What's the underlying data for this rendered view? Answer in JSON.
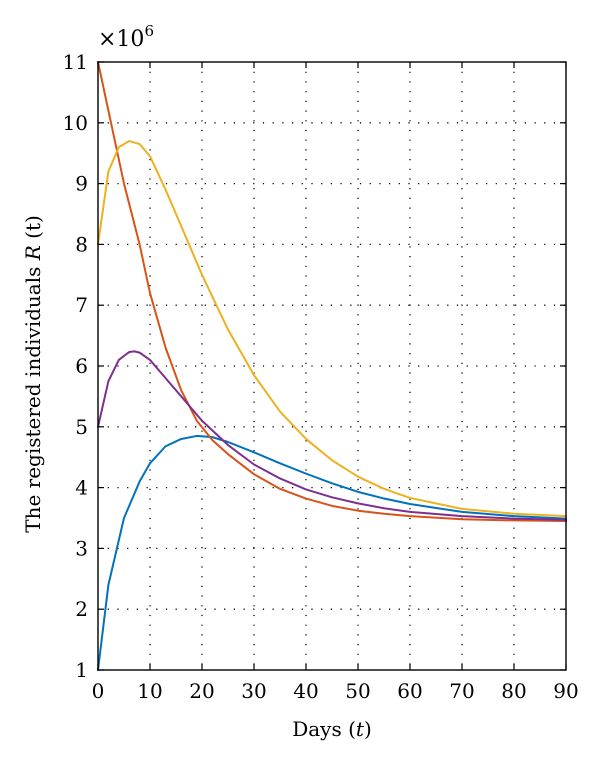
{
  "chart_data": {
    "type": "line",
    "xlabel": "Days (t)",
    "ylabel": "The registered individuals R (t)",
    "xlabel_parts": {
      "pre": "Days (",
      "var": "t",
      "post": ")"
    },
    "ylabel_parts": {
      "pre": "The registered individuals ",
      "var": "R",
      "post": " (t)"
    },
    "y_multiplier": {
      "base": "×10",
      "exponent": "6"
    },
    "xlim": [
      0,
      90
    ],
    "ylim": [
      1,
      11
    ],
    "xticks": [
      0,
      10,
      20,
      30,
      40,
      50,
      60,
      70,
      80,
      90
    ],
    "yticks": [
      1,
      2,
      3,
      4,
      5,
      6,
      7,
      8,
      9,
      10,
      11
    ],
    "grid": true,
    "series": [
      {
        "color": "#0072BD",
        "x": [
          0,
          2,
          5,
          8,
          10,
          13,
          16,
          19,
          22,
          25,
          30,
          35,
          40,
          45,
          50,
          55,
          60,
          70,
          80,
          90
        ],
        "y": [
          1.0,
          2.4,
          3.5,
          4.1,
          4.4,
          4.68,
          4.8,
          4.85,
          4.83,
          4.75,
          4.58,
          4.4,
          4.23,
          4.07,
          3.93,
          3.82,
          3.73,
          3.6,
          3.53,
          3.49
        ]
      },
      {
        "color": "#D95319",
        "x": [
          0,
          2,
          5,
          8,
          10,
          13,
          16,
          19,
          22,
          25,
          30,
          35,
          40,
          45,
          50,
          55,
          60,
          70,
          80,
          90
        ],
        "y": [
          11.0,
          10.2,
          9.0,
          8.0,
          7.2,
          6.3,
          5.6,
          5.1,
          4.78,
          4.55,
          4.22,
          3.98,
          3.82,
          3.7,
          3.62,
          3.57,
          3.53,
          3.48,
          3.46,
          3.45
        ]
      },
      {
        "color": "#EDB120",
        "x": [
          0,
          2,
          4,
          6,
          8,
          10,
          13,
          16,
          20,
          25,
          30,
          35,
          40,
          45,
          50,
          55,
          60,
          70,
          80,
          90
        ],
        "y": [
          8.0,
          9.2,
          9.6,
          9.7,
          9.65,
          9.45,
          8.9,
          8.3,
          7.5,
          6.6,
          5.85,
          5.25,
          4.8,
          4.45,
          4.18,
          3.98,
          3.83,
          3.65,
          3.57,
          3.53
        ]
      },
      {
        "color": "#7E2F8E",
        "x": [
          0,
          2,
          4,
          6,
          7,
          8,
          10,
          13,
          16,
          20,
          25,
          30,
          35,
          40,
          45,
          50,
          55,
          60,
          70,
          80,
          90
        ],
        "y": [
          5.0,
          5.75,
          6.1,
          6.23,
          6.24,
          6.22,
          6.1,
          5.8,
          5.5,
          5.1,
          4.7,
          4.38,
          4.15,
          3.97,
          3.84,
          3.74,
          3.66,
          3.6,
          3.53,
          3.49,
          3.47
        ]
      }
    ]
  }
}
